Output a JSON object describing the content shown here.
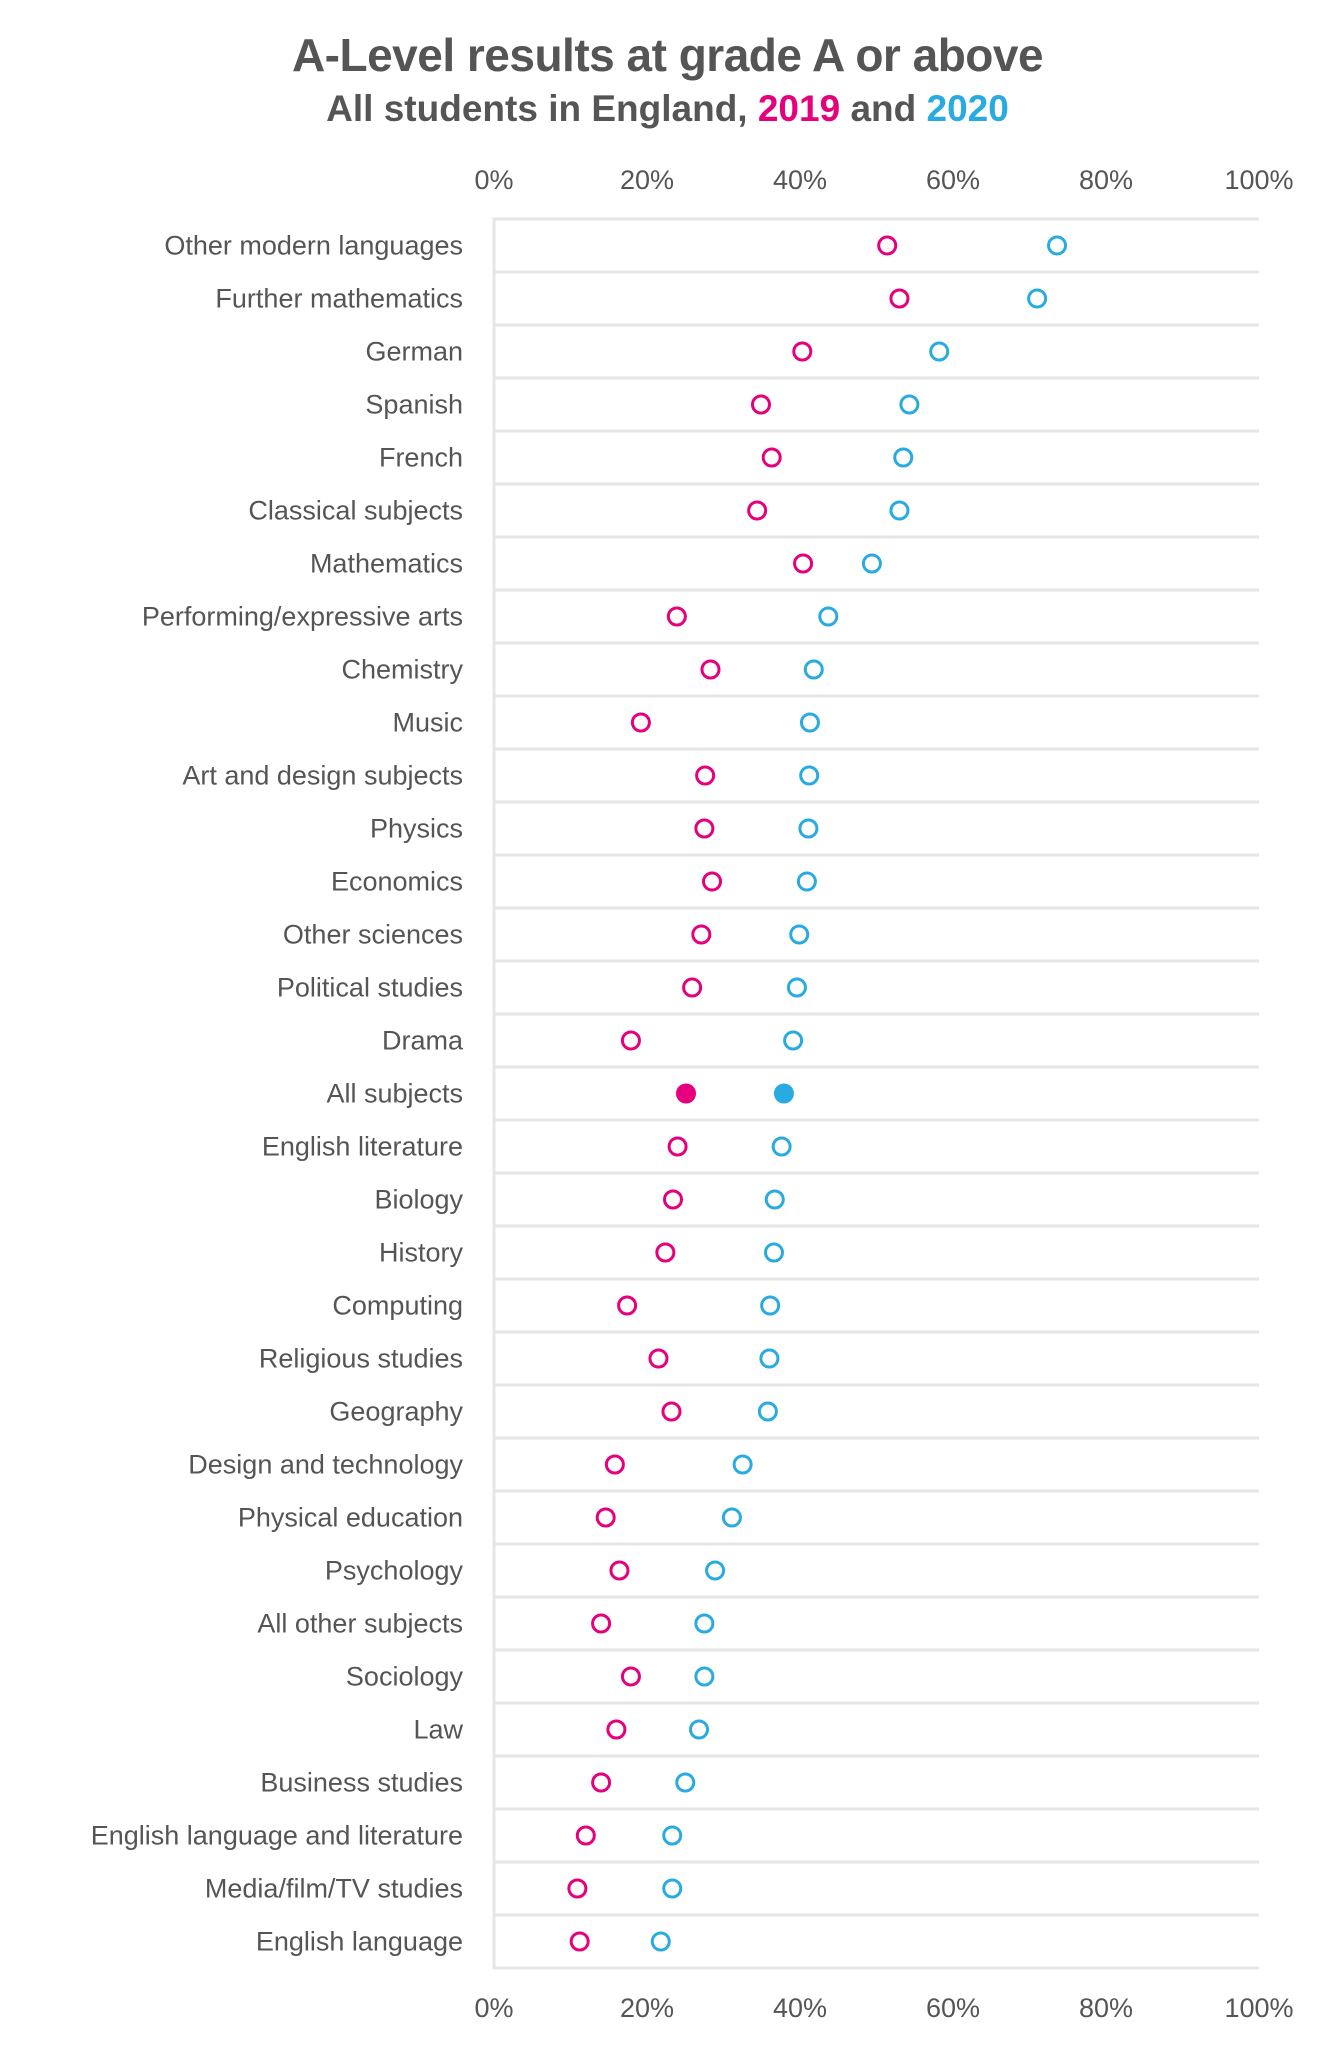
{
  "chart_data": {
    "type": "scatter",
    "subtype": "dot-plot",
    "title": "A-Level results at grade A or above",
    "subtitle": {
      "prefix": "All students in England, ",
      "series1": "2019",
      "middle": " and ",
      "series2": "2020"
    },
    "xlabel": "",
    "ylabel": "",
    "xlim": [
      0,
      100
    ],
    "x_ticks": [
      "0%",
      "20%",
      "40%",
      "60%",
      "80%",
      "100%"
    ],
    "x_tick_values": [
      0,
      20,
      40,
      60,
      80,
      100
    ],
    "x_axis_positions": [
      "top",
      "bottom"
    ],
    "grid": "horizontal row separators",
    "legend": "in subtitle",
    "categories": [
      "Other modern languages",
      "Further mathematics",
      "German",
      "Spanish",
      "French",
      "Classical subjects",
      "Mathematics",
      "Performing/expressive arts",
      "Chemistry",
      "Music",
      "Art and design subjects",
      "Physics",
      "Economics",
      "Other sciences",
      "Political studies",
      "Drama",
      "All subjects",
      "English literature",
      "Biology",
      "History",
      "Computing",
      "Religious studies",
      "Geography",
      "Design and technology",
      "Physical education",
      "Psychology",
      "All other subjects",
      "Sociology",
      "Law",
      "Business studies",
      "English language and literature",
      "Media/film/TV studies",
      "English language"
    ],
    "highlight_category": "All subjects",
    "series": [
      {
        "name": "2019",
        "color": "#E6007E",
        "values": [
          51.4,
          53.0,
          40.3,
          34.9,
          36.3,
          34.4,
          40.4,
          23.9,
          28.3,
          19.2,
          27.6,
          27.5,
          28.5,
          27.1,
          25.9,
          17.9,
          25.1,
          24.0,
          23.4,
          22.4,
          17.4,
          21.5,
          23.2,
          15.8,
          14.6,
          16.4,
          14.0,
          17.9,
          16.0,
          14.0,
          12.0,
          10.9,
          11.2
        ]
      },
      {
        "name": "2020",
        "color": "#29ABE2",
        "values": [
          73.6,
          71.0,
          58.2,
          54.3,
          53.5,
          53.0,
          49.4,
          43.7,
          41.8,
          41.3,
          41.2,
          41.1,
          40.9,
          39.9,
          39.6,
          39.1,
          37.9,
          37.6,
          36.7,
          36.6,
          36.1,
          36.0,
          35.8,
          32.5,
          31.1,
          28.9,
          27.5,
          27.5,
          26.8,
          25.0,
          23.3,
          23.3,
          21.8
        ]
      }
    ]
  }
}
